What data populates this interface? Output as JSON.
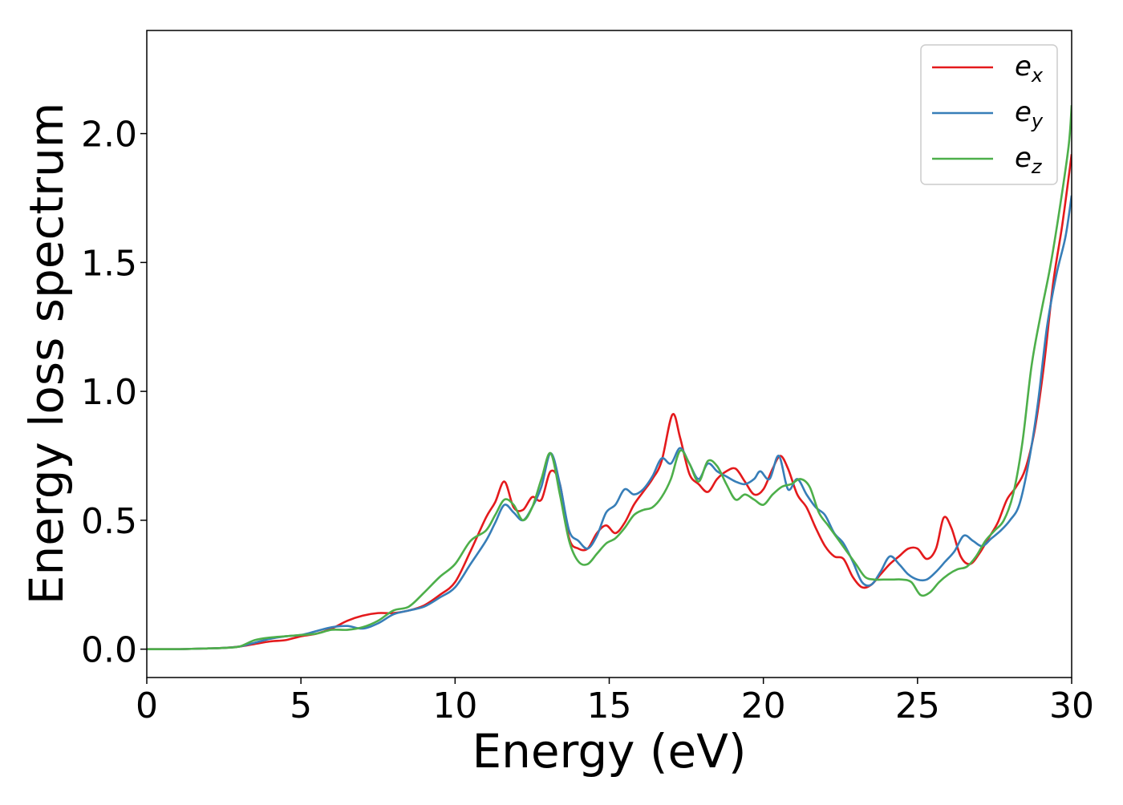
{
  "chart_data": {
    "type": "line",
    "xlabel": "Energy (eV)",
    "ylabel": "Energy loss spectrum",
    "xlim": [
      0,
      30
    ],
    "ylim": [
      -0.11,
      2.4
    ],
    "xticks": [
      0,
      5,
      10,
      15,
      20,
      25,
      30
    ],
    "yticks": [
      0.0,
      0.5,
      1.0,
      1.5,
      2.0
    ],
    "xtick_labels": [
      "0",
      "5",
      "10",
      "15",
      "20",
      "25",
      "30"
    ],
    "ytick_labels": [
      "0.0",
      "0.5",
      "1.0",
      "1.5",
      "2.0"
    ],
    "grid": false,
    "legend": "top-right",
    "colors": {
      "e_x": "#e41a1c",
      "e_y": "#377eb8",
      "e_z": "#4daf4a"
    },
    "series": [
      {
        "name": "e_x",
        "label_base": "e",
        "label_sub": "x",
        "color": "#e41a1c",
        "x": [
          0,
          1,
          2,
          2.5,
          3,
          3.5,
          4,
          4.5,
          5,
          5.5,
          6,
          6.5,
          7,
          7.5,
          8,
          8.5,
          9,
          9.5,
          10,
          10.5,
          11,
          11.3,
          11.6,
          11.9,
          12.2,
          12.5,
          12.8,
          13.1,
          13.4,
          13.7,
          14,
          14.3,
          14.6,
          14.9,
          15.2,
          15.5,
          15.8,
          16.1,
          16.4,
          16.7,
          17.05,
          17.3,
          17.6,
          17.9,
          18.2,
          18.5,
          18.8,
          19.1,
          19.4,
          19.7,
          20,
          20.3,
          20.55,
          20.8,
          21.1,
          21.4,
          21.7,
          22,
          22.3,
          22.6,
          22.9,
          23.2,
          23.5,
          23.8,
          24.1,
          24.4,
          24.7,
          25,
          25.3,
          25.6,
          25.85,
          26.1,
          26.4,
          26.7,
          27,
          27.3,
          27.6,
          27.9,
          28.2,
          28.5,
          28.8,
          29.1,
          29.4,
          29.7,
          30
        ],
        "y": [
          0,
          0,
          0.003,
          0.005,
          0.01,
          0.02,
          0.03,
          0.035,
          0.05,
          0.06,
          0.08,
          0.11,
          0.13,
          0.14,
          0.14,
          0.15,
          0.17,
          0.21,
          0.26,
          0.38,
          0.51,
          0.57,
          0.65,
          0.55,
          0.54,
          0.59,
          0.58,
          0.69,
          0.64,
          0.43,
          0.39,
          0.39,
          0.45,
          0.48,
          0.45,
          0.49,
          0.56,
          0.61,
          0.66,
          0.73,
          0.91,
          0.82,
          0.68,
          0.64,
          0.61,
          0.66,
          0.69,
          0.7,
          0.65,
          0.6,
          0.62,
          0.7,
          0.75,
          0.7,
          0.6,
          0.55,
          0.47,
          0.4,
          0.36,
          0.35,
          0.28,
          0.24,
          0.25,
          0.29,
          0.33,
          0.36,
          0.39,
          0.39,
          0.35,
          0.39,
          0.51,
          0.47,
          0.36,
          0.33,
          0.37,
          0.43,
          0.49,
          0.58,
          0.63,
          0.7,
          0.85,
          1.1,
          1.42,
          1.65,
          1.92
        ]
      },
      {
        "name": "e_y",
        "label_base": "e",
        "label_sub": "y",
        "color": "#377eb8",
        "x": [
          0,
          1,
          2,
          2.5,
          3,
          3.5,
          4,
          4.5,
          5,
          5.5,
          6,
          6.5,
          7,
          7.5,
          8,
          8.5,
          9,
          9.5,
          10,
          10.5,
          11,
          11.3,
          11.6,
          11.9,
          12.2,
          12.5,
          12.8,
          13.1,
          13.4,
          13.7,
          14,
          14.3,
          14.6,
          14.9,
          15.2,
          15.5,
          15.8,
          16.1,
          16.4,
          16.7,
          17,
          17.3,
          17.6,
          17.9,
          18.2,
          18.5,
          18.8,
          19.1,
          19.4,
          19.7,
          19.9,
          20.2,
          20.5,
          20.8,
          21.1,
          21.4,
          21.7,
          22,
          22.3,
          22.6,
          22.9,
          23.2,
          23.5,
          23.8,
          24.1,
          24.4,
          24.7,
          25,
          25.3,
          25.6,
          25.9,
          26.2,
          26.5,
          26.8,
          27.1,
          27.4,
          27.7,
          28,
          28.3,
          28.6,
          28.9,
          29.2,
          29.5,
          29.8,
          30
        ],
        "y": [
          0,
          0,
          0.003,
          0.005,
          0.01,
          0.025,
          0.04,
          0.05,
          0.055,
          0.07,
          0.085,
          0.09,
          0.08,
          0.1,
          0.135,
          0.15,
          0.165,
          0.2,
          0.24,
          0.33,
          0.42,
          0.49,
          0.56,
          0.53,
          0.5,
          0.55,
          0.63,
          0.76,
          0.64,
          0.46,
          0.42,
          0.39,
          0.44,
          0.53,
          0.56,
          0.62,
          0.6,
          0.62,
          0.67,
          0.74,
          0.72,
          0.78,
          0.72,
          0.66,
          0.72,
          0.69,
          0.67,
          0.65,
          0.64,
          0.66,
          0.69,
          0.66,
          0.75,
          0.62,
          0.66,
          0.6,
          0.55,
          0.52,
          0.45,
          0.41,
          0.34,
          0.26,
          0.25,
          0.3,
          0.36,
          0.33,
          0.29,
          0.27,
          0.27,
          0.3,
          0.34,
          0.38,
          0.44,
          0.42,
          0.4,
          0.43,
          0.46,
          0.5,
          0.56,
          0.72,
          0.95,
          1.25,
          1.45,
          1.6,
          1.76
        ]
      },
      {
        "name": "e_z",
        "label_base": "e",
        "label_sub": "z",
        "color": "#4daf4a",
        "x": [
          0,
          1,
          2,
          2.5,
          3,
          3.5,
          4,
          4.5,
          5,
          5.5,
          6,
          6.5,
          7,
          7.5,
          8,
          8.5,
          9,
          9.5,
          10,
          10.5,
          11,
          11.3,
          11.6,
          11.9,
          12.2,
          12.5,
          12.8,
          13.1,
          13.4,
          13.7,
          14,
          14.3,
          14.6,
          14.9,
          15.2,
          15.5,
          15.8,
          16.1,
          16.4,
          16.7,
          17,
          17.3,
          17.6,
          17.9,
          18.2,
          18.5,
          18.8,
          19.1,
          19.4,
          19.7,
          20,
          20.3,
          20.6,
          20.9,
          21.2,
          21.5,
          21.8,
          22.1,
          22.4,
          22.7,
          23,
          23.3,
          23.6,
          23.9,
          24.2,
          24.5,
          24.8,
          25.1,
          25.4,
          25.7,
          26,
          26.3,
          26.6,
          26.9,
          27.2,
          27.5,
          27.8,
          28.1,
          28.4,
          28.7,
          29,
          29.3,
          29.6,
          29.9,
          30
        ],
        "y": [
          0,
          0,
          0.003,
          0.005,
          0.01,
          0.035,
          0.045,
          0.05,
          0.055,
          0.06,
          0.075,
          0.075,
          0.085,
          0.11,
          0.15,
          0.165,
          0.22,
          0.28,
          0.33,
          0.42,
          0.46,
          0.52,
          0.58,
          0.56,
          0.5,
          0.55,
          0.66,
          0.76,
          0.6,
          0.42,
          0.34,
          0.33,
          0.37,
          0.41,
          0.43,
          0.47,
          0.52,
          0.54,
          0.55,
          0.59,
          0.66,
          0.77,
          0.72,
          0.65,
          0.73,
          0.71,
          0.64,
          0.58,
          0.6,
          0.58,
          0.56,
          0.6,
          0.63,
          0.64,
          0.66,
          0.63,
          0.53,
          0.48,
          0.43,
          0.38,
          0.33,
          0.28,
          0.27,
          0.27,
          0.27,
          0.27,
          0.26,
          0.21,
          0.22,
          0.26,
          0.29,
          0.31,
          0.32,
          0.36,
          0.42,
          0.46,
          0.5,
          0.6,
          0.8,
          1.1,
          1.3,
          1.48,
          1.7,
          1.95,
          2.11
        ]
      }
    ]
  }
}
